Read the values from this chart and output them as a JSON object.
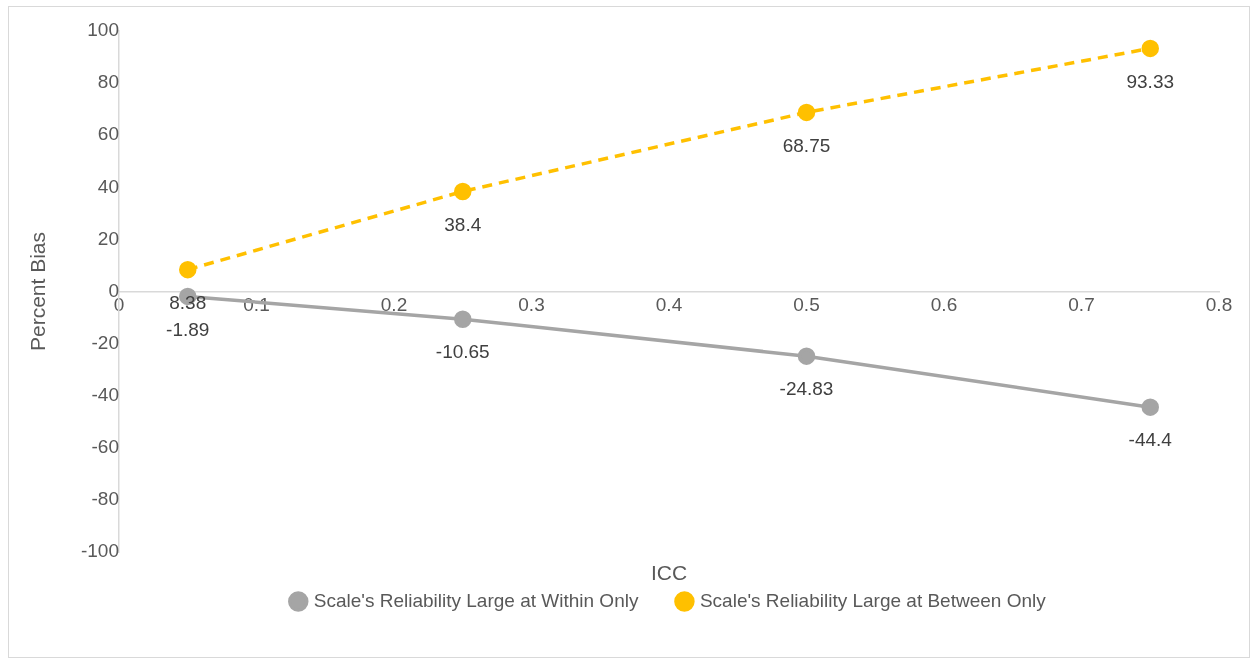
{
  "chart_data": {
    "type": "line",
    "xlabel": "ICC",
    "ylabel": "Percent Bias",
    "x": [
      0.05,
      0.25,
      0.5,
      0.75
    ],
    "xlim": [
      0,
      0.8
    ],
    "xticks": [
      0,
      0.1,
      0.2,
      0.3,
      0.4,
      0.5,
      0.6,
      0.7,
      0.8
    ],
    "ylim": [
      -100,
      100
    ],
    "yticks": [
      -100,
      -80,
      -60,
      -40,
      -20,
      0,
      20,
      40,
      60,
      80,
      100
    ],
    "series": [
      {
        "name": "Scale's Reliability Large at Within Only",
        "color": "#a5a5a5",
        "line_style": "solid",
        "values": [
          -1.89,
          -10.65,
          -24.83,
          -44.4
        ]
      },
      {
        "name": "Scale's Reliability Large at Between Only",
        "color": "#ffc000",
        "line_style": "dashed",
        "values": [
          8.38,
          38.4,
          68.75,
          93.33
        ]
      }
    ],
    "marker": "circle",
    "grid": false,
    "legend": "bottom",
    "data_labels": true
  }
}
